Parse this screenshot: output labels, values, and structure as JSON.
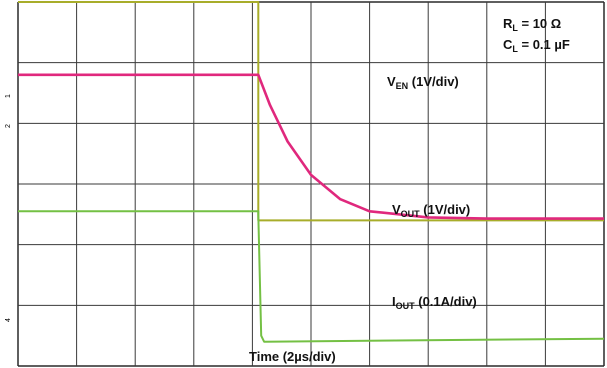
{
  "chart_data": {
    "type": "line",
    "x_label": "Time (2µs/div)",
    "x_unit_per_div": "2µs",
    "divisions": {
      "x": 10,
      "y": 6
    },
    "grid": true,
    "conditions": {
      "rl": {
        "sym": "R",
        "sub": "L",
        "val": " = 10 Ω"
      },
      "cl": {
        "sym": "C",
        "sub": "L",
        "val": " = 0.1 µF"
      }
    },
    "series": [
      {
        "key": "ven",
        "label_sym": "V",
        "label_sub": "EN",
        "label_rest": " (1V/div)",
        "color": "#a8ad2a",
        "marker_color": "#a8ad2a",
        "points": [
          [
            0,
            0.0
          ],
          [
            4.1,
            0.0
          ],
          [
            4.1,
            3.6
          ],
          [
            10,
            3.6
          ]
        ]
      },
      {
        "key": "vout",
        "label_sym": "V",
        "label_sub": "OUT",
        "label_rest": " (1V/div)",
        "color": "#e0287d",
        "marker_color": "#e0287d",
        "points": [
          [
            0,
            1.2
          ],
          [
            4.1,
            1.2
          ],
          [
            4.3,
            1.7
          ],
          [
            4.6,
            2.3
          ],
          [
            5.0,
            2.85
          ],
          [
            5.5,
            3.25
          ],
          [
            6.0,
            3.45
          ],
          [
            7.0,
            3.55
          ],
          [
            8.0,
            3.57
          ],
          [
            10,
            3.57
          ]
        ]
      },
      {
        "key": "iout",
        "label_sym": "I",
        "label_sub": "OUT",
        "label_rest": " (0.1A/div)",
        "color": "#74c044",
        "marker_color": "#74c044",
        "points": [
          [
            0,
            3.45
          ],
          [
            4.1,
            3.45
          ],
          [
            4.1,
            3.5
          ],
          [
            4.15,
            5.5
          ],
          [
            4.2,
            5.6
          ],
          [
            10,
            5.55
          ]
        ]
      }
    ]
  }
}
